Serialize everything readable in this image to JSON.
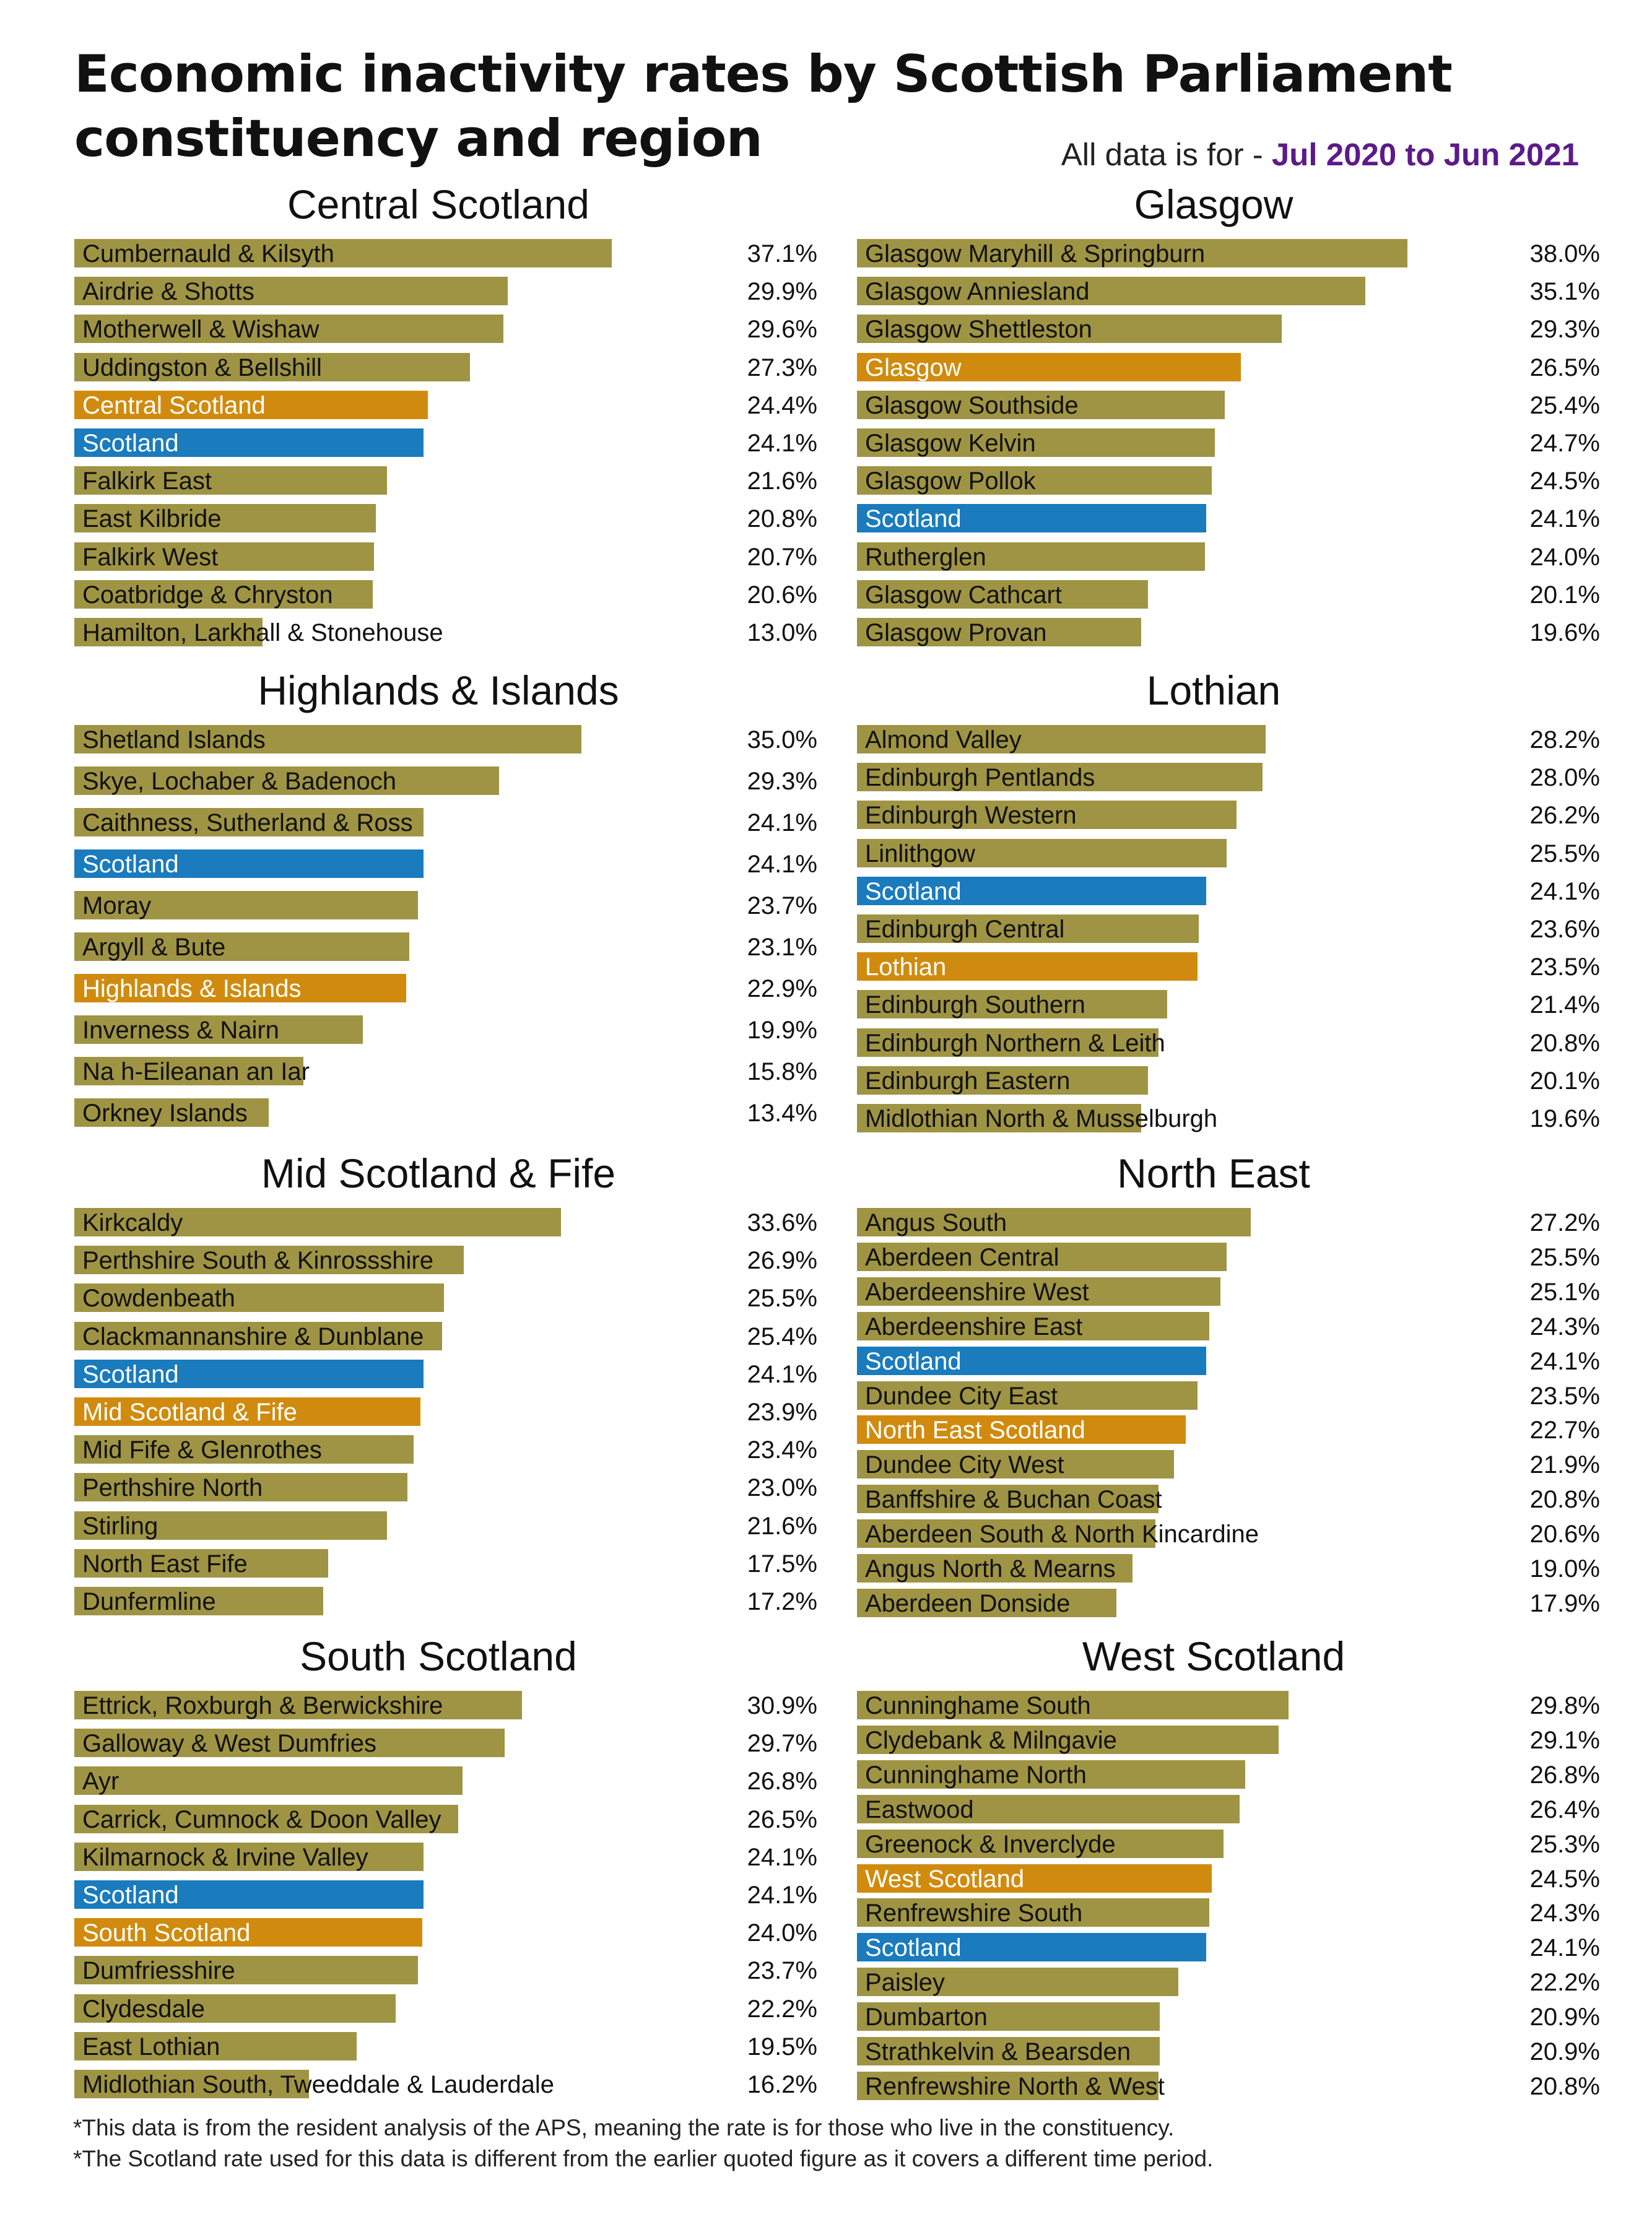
{
  "title": "Economic inactivity rates by Scottish Parliament constituency and region",
  "subtitle_prefix": "All data is for - ",
  "subtitle_period": "Jul 2020 to Jun 2021",
  "footnotes": [
    "*This data is from the resident analysis of the APS, meaning the rate is for those who live in the constituency.",
    "*The Scotland rate used for this data is different from the earlier quoted figure as it covers a different time period."
  ],
  "colors": {
    "constituency": "#9f9443",
    "region": "#d08b0e",
    "scotland": "#1a7bbd",
    "label_light": "#ffffff",
    "period": "#5c1a8a"
  },
  "chart_data": [
    {
      "type": "bar",
      "title": "Central Scotland",
      "xlim": [
        0,
        40
      ],
      "categories": [
        "Cumbernauld & Kilsyth",
        "Airdrie & Shotts",
        "Motherwell & Wishaw",
        "Uddingston & Bellshill",
        "Central Scotland",
        "Scotland",
        "Falkirk East",
        "East Kilbride",
        "Falkirk West",
        "Coatbridge & Chryston",
        "Hamilton, Larkhall & Stonehouse"
      ],
      "values": [
        37.1,
        29.9,
        29.6,
        27.3,
        24.4,
        24.1,
        21.6,
        20.8,
        20.7,
        20.6,
        13.0
      ],
      "labels": [
        "37.1%",
        "29.9%",
        "29.6%",
        "27.3%",
        "24.4%",
        "24.1%",
        "21.6%",
        "20.8%",
        "20.7%",
        "20.6%",
        "13.0%"
      ],
      "kinds": [
        "c",
        "c",
        "c",
        "c",
        "r",
        "s",
        "c",
        "c",
        "c",
        "c",
        "c"
      ]
    },
    {
      "type": "bar",
      "title": "Glasgow",
      "xlim": [
        0,
        40
      ],
      "categories": [
        "Glasgow Maryhill & Springburn",
        "Glasgow Anniesland",
        "Glasgow Shettleston",
        "Glasgow",
        "Glasgow Southside",
        "Glasgow Kelvin",
        "Glasgow Pollok",
        "Scotland",
        "Rutherglen",
        "Glasgow Cathcart",
        "Glasgow Provan"
      ],
      "values": [
        38.0,
        35.1,
        29.3,
        26.5,
        25.4,
        24.7,
        24.5,
        24.1,
        24.0,
        20.1,
        19.6
      ],
      "labels": [
        "38.0%",
        "35.1%",
        "29.3%",
        "26.5%",
        "25.4%",
        "24.7%",
        "24.5%",
        "24.1%",
        "24.0%",
        "20.1%",
        "19.6%"
      ],
      "kinds": [
        "c",
        "c",
        "c",
        "r",
        "c",
        "c",
        "c",
        "s",
        "c",
        "c",
        "c"
      ]
    },
    {
      "type": "bar",
      "title": "Highlands & Islands",
      "xlim": [
        0,
        40
      ],
      "categories": [
        "Shetland Islands",
        "Skye, Lochaber & Badenoch",
        "Caithness, Sutherland & Ross",
        "Scotland",
        "Moray",
        "Argyll & Bute",
        "Highlands & Islands",
        "Inverness & Nairn",
        "Na h-Eileanan an Iar",
        "Orkney Islands"
      ],
      "values": [
        35.0,
        29.3,
        24.1,
        24.1,
        23.7,
        23.1,
        22.9,
        19.9,
        15.8,
        13.4
      ],
      "labels": [
        "35.0%",
        "29.3%",
        "24.1%",
        "24.1%",
        "23.7%",
        "23.1%",
        "22.9%",
        "19.9%",
        "15.8%",
        "13.4%"
      ],
      "kinds": [
        "c",
        "c",
        "c",
        "s",
        "c",
        "c",
        "r",
        "c",
        "c",
        "c"
      ]
    },
    {
      "type": "bar",
      "title": "Lothian",
      "xlim": [
        0,
        40
      ],
      "categories": [
        "Almond Valley",
        "Edinburgh Pentlands",
        "Edinburgh Western",
        "Linlithgow",
        "Scotland",
        "Edinburgh Central",
        "Lothian",
        "Edinburgh Southern",
        "Edinburgh Northern & Leith",
        "Edinburgh Eastern",
        "Midlothian North & Musselburgh"
      ],
      "values": [
        28.2,
        28.0,
        26.2,
        25.5,
        24.1,
        23.6,
        23.5,
        21.4,
        20.8,
        20.1,
        19.6
      ],
      "labels": [
        "28.2%",
        "28.0%",
        "26.2%",
        "25.5%",
        "24.1%",
        "23.6%",
        "23.5%",
        "21.4%",
        "20.8%",
        "20.1%",
        "19.6%"
      ],
      "kinds": [
        "c",
        "c",
        "c",
        "c",
        "s",
        "c",
        "r",
        "c",
        "c",
        "c",
        "c"
      ]
    },
    {
      "type": "bar",
      "title": "Mid Scotland & Fife",
      "xlim": [
        0,
        40
      ],
      "categories": [
        "Kirkcaldy",
        "Perthshire South & Kinrossshire",
        "Cowdenbeath",
        "Clackmannanshire & Dunblane",
        "Scotland",
        "Mid Scotland & Fife",
        "Mid Fife & Glenrothes",
        "Perthshire North",
        "Stirling",
        "North East Fife",
        "Dunfermline"
      ],
      "values": [
        33.6,
        26.9,
        25.5,
        25.4,
        24.1,
        23.9,
        23.4,
        23.0,
        21.6,
        17.5,
        17.2
      ],
      "labels": [
        "33.6%",
        "26.9%",
        "25.5%",
        "25.4%",
        "24.1%",
        "23.9%",
        "23.4%",
        "23.0%",
        "21.6%",
        "17.5%",
        "17.2%"
      ],
      "kinds": [
        "c",
        "c",
        "c",
        "c",
        "s",
        "r",
        "c",
        "c",
        "c",
        "c",
        "c"
      ]
    },
    {
      "type": "bar",
      "title": "North East",
      "xlim": [
        0,
        40
      ],
      "categories": [
        "Angus South",
        "Aberdeen Central",
        "Aberdeenshire West",
        "Aberdeenshire East",
        "Scotland",
        "Dundee City East",
        "North East Scotland",
        "Dundee City West",
        "Banffshire & Buchan Coast",
        "Aberdeen South & North Kincardine",
        "Angus North & Mearns",
        "Aberdeen Donside"
      ],
      "values": [
        27.2,
        25.5,
        25.1,
        24.3,
        24.1,
        23.5,
        22.7,
        21.9,
        20.8,
        20.6,
        19.0,
        17.9
      ],
      "labels": [
        "27.2%",
        "25.5%",
        "25.1%",
        "24.3%",
        "24.1%",
        "23.5%",
        "22.7%",
        "21.9%",
        "20.8%",
        "20.6%",
        "19.0%",
        "17.9%"
      ],
      "kinds": [
        "c",
        "c",
        "c",
        "c",
        "s",
        "c",
        "r",
        "c",
        "c",
        "c",
        "c",
        "c"
      ]
    },
    {
      "type": "bar",
      "title": "South Scotland",
      "xlim": [
        0,
        40
      ],
      "categories": [
        "Ettrick, Roxburgh & Berwickshire",
        "Galloway & West Dumfries",
        "Ayr",
        "Carrick, Cumnock & Doon Valley",
        "Kilmarnock & Irvine Valley",
        "Scotland",
        "South Scotland",
        "Dumfriesshire",
        "Clydesdale",
        "East Lothian",
        "Midlothian South, Tweeddale & Lauderdale"
      ],
      "values": [
        30.9,
        29.7,
        26.8,
        26.5,
        24.1,
        24.1,
        24.0,
        23.7,
        22.2,
        19.5,
        16.2
      ],
      "labels": [
        "30.9%",
        "29.7%",
        "26.8%",
        "26.5%",
        "24.1%",
        "24.1%",
        "24.0%",
        "23.7%",
        "22.2%",
        "19.5%",
        "16.2%"
      ],
      "kinds": [
        "c",
        "c",
        "c",
        "c",
        "c",
        "s",
        "r",
        "c",
        "c",
        "c",
        "c"
      ]
    },
    {
      "type": "bar",
      "title": "West Scotland",
      "xlim": [
        0,
        40
      ],
      "categories": [
        "Cunninghame South",
        "Clydebank & Milngavie",
        "Cunninghame North",
        "Eastwood",
        "Greenock & Inverclyde",
        "West Scotland",
        "Renfrewshire South",
        "Scotland",
        "Paisley",
        "Dumbarton",
        "Strathkelvin & Bearsden",
        "Renfrewshire North & West"
      ],
      "values": [
        29.8,
        29.1,
        26.8,
        26.4,
        25.3,
        24.5,
        24.3,
        24.1,
        22.2,
        20.9,
        20.9,
        20.8
      ],
      "labels": [
        "29.8%",
        "29.1%",
        "26.8%",
        "26.4%",
        "25.3%",
        "24.5%",
        "24.3%",
        "24.1%",
        "22.2%",
        "20.9%",
        "20.9%",
        "20.8%"
      ],
      "kinds": [
        "c",
        "c",
        "c",
        "c",
        "c",
        "r",
        "c",
        "s",
        "c",
        "c",
        "c",
        "c"
      ]
    }
  ]
}
